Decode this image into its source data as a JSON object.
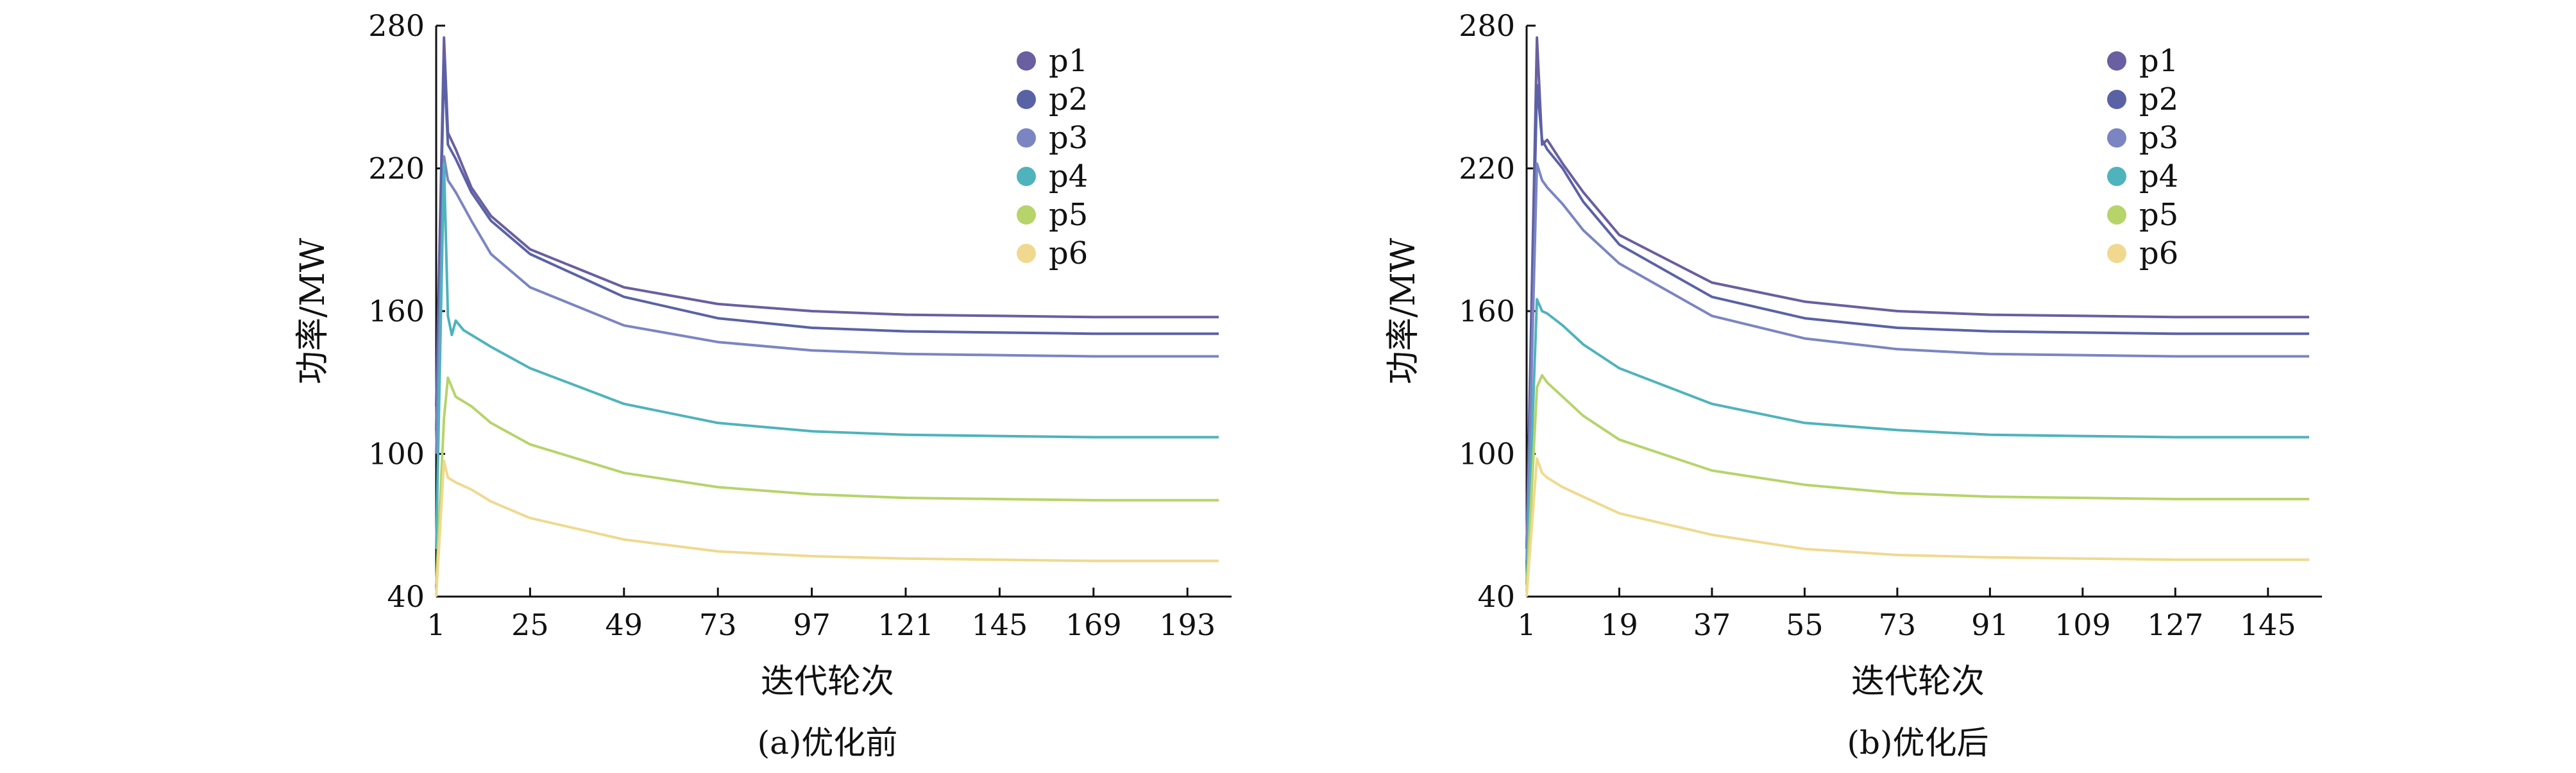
{
  "chart_data": [
    {
      "type": "line",
      "caption": "(a)优化前",
      "xlabel": "迭代轮次",
      "ylabel": "功率/MW",
      "xlim": [
        1,
        201
      ],
      "ylim": [
        40,
        280
      ],
      "xticks": [
        1,
        25,
        49,
        73,
        97,
        121,
        145,
        169,
        193
      ],
      "yticks": [
        40,
        100,
        160,
        220,
        280
      ],
      "legend_position": "top-right",
      "series": [
        {
          "name": "p1",
          "color": "#6a5fa0",
          "points": [
            [
              1,
              120
            ],
            [
              3,
              275
            ],
            [
              4,
              235
            ],
            [
              6,
              228
            ],
            [
              10,
              212
            ],
            [
              15,
              200
            ],
            [
              25,
              186
            ],
            [
              49,
              170
            ],
            [
              73,
              163
            ],
            [
              97,
              160
            ],
            [
              121,
              158.5
            ],
            [
              145,
              158
            ],
            [
              169,
              157.5
            ],
            [
              201,
              157.5
            ]
          ]
        },
        {
          "name": "p2",
          "color": "#5a62a6",
          "points": [
            [
              1,
              110
            ],
            [
              3,
              265
            ],
            [
              4,
              230
            ],
            [
              6,
              224
            ],
            [
              10,
              210
            ],
            [
              15,
              198
            ],
            [
              25,
              184
            ],
            [
              49,
              166
            ],
            [
              73,
              157
            ],
            [
              97,
              153
            ],
            [
              121,
              151.5
            ],
            [
              145,
              151
            ],
            [
              169,
              150.5
            ],
            [
              201,
              150.5
            ]
          ]
        },
        {
          "name": "p3",
          "color": "#7b85c2",
          "points": [
            [
              1,
              100
            ],
            [
              3,
              225
            ],
            [
              4,
              215
            ],
            [
              6,
              210
            ],
            [
              10,
              198
            ],
            [
              15,
              184
            ],
            [
              25,
              170
            ],
            [
              49,
              154
            ],
            [
              73,
              147
            ],
            [
              97,
              143.5
            ],
            [
              121,
              142
            ],
            [
              145,
              141.5
            ],
            [
              169,
              141
            ],
            [
              201,
              141
            ]
          ]
        },
        {
          "name": "p4",
          "color": "#4fb3bd",
          "points": [
            [
              1,
              60
            ],
            [
              3,
              222
            ],
            [
              4,
              158
            ],
            [
              5,
              150
            ],
            [
              6,
              156
            ],
            [
              8,
              152
            ],
            [
              15,
              145
            ],
            [
              25,
              136
            ],
            [
              49,
              121
            ],
            [
              73,
              113
            ],
            [
              97,
              109.5
            ],
            [
              121,
              108
            ],
            [
              145,
              107.5
            ],
            [
              169,
              107
            ],
            [
              201,
              107
            ]
          ]
        },
        {
          "name": "p5",
          "color": "#b6d46a",
          "points": [
            [
              1,
              45
            ],
            [
              3,
              115
            ],
            [
              4,
              132
            ],
            [
              6,
              124
            ],
            [
              10,
              120
            ],
            [
              15,
              113
            ],
            [
              25,
              104
            ],
            [
              49,
              92
            ],
            [
              73,
              86
            ],
            [
              97,
              83
            ],
            [
              121,
              81.5
            ],
            [
              145,
              81
            ],
            [
              169,
              80.5
            ],
            [
              201,
              80.5
            ]
          ]
        },
        {
          "name": "p6",
          "color": "#f0d98f",
          "points": [
            [
              1,
              40
            ],
            [
              3,
              97
            ],
            [
              4,
              90
            ],
            [
              6,
              88
            ],
            [
              10,
              85
            ],
            [
              15,
              80
            ],
            [
              25,
              73
            ],
            [
              49,
              64
            ],
            [
              73,
              59
            ],
            [
              97,
              57
            ],
            [
              121,
              56
            ],
            [
              145,
              55.5
            ],
            [
              169,
              55
            ],
            [
              201,
              55
            ]
          ]
        }
      ]
    },
    {
      "type": "line",
      "caption": "(b)优化后",
      "xlabel": "迭代轮次",
      "ylabel": "功率/MW",
      "xlim": [
        1,
        153
      ],
      "ylim": [
        40,
        280
      ],
      "xticks": [
        1,
        19,
        37,
        55,
        73,
        91,
        109,
        127,
        145
      ],
      "yticks": [
        40,
        100,
        160,
        220,
        280
      ],
      "legend_position": "top-right",
      "series": [
        {
          "name": "p1",
          "color": "#6a5fa0",
          "points": [
            [
              1,
              60
            ],
            [
              3,
              275
            ],
            [
              4,
              230
            ],
            [
              5,
              232
            ],
            [
              8,
              222
            ],
            [
              12,
              210
            ],
            [
              19,
              192
            ],
            [
              37,
              172
            ],
            [
              55,
              164
            ],
            [
              73,
              160
            ],
            [
              91,
              158.5
            ],
            [
              109,
              158
            ],
            [
              127,
              157.5
            ],
            [
              153,
              157.5
            ]
          ]
        },
        {
          "name": "p2",
          "color": "#5a62a6",
          "points": [
            [
              1,
              60
            ],
            [
              3,
              255
            ],
            [
              4,
              232
            ],
            [
              5,
              228
            ],
            [
              8,
              220
            ],
            [
              12,
              206
            ],
            [
              19,
              188
            ],
            [
              37,
              166
            ],
            [
              55,
              157
            ],
            [
              73,
              153
            ],
            [
              91,
              151.5
            ],
            [
              109,
              151
            ],
            [
              127,
              150.5
            ],
            [
              153,
              150.5
            ]
          ]
        },
        {
          "name": "p3",
          "color": "#7b85c2",
          "points": [
            [
              1,
              55
            ],
            [
              3,
              222
            ],
            [
              4,
              215
            ],
            [
              5,
              212
            ],
            [
              8,
              205
            ],
            [
              12,
              194
            ],
            [
              19,
              180
            ],
            [
              37,
              158
            ],
            [
              55,
              148.5
            ],
            [
              73,
              144
            ],
            [
              91,
              142
            ],
            [
              109,
              141.5
            ],
            [
              127,
              141
            ],
            [
              153,
              141
            ]
          ]
        },
        {
          "name": "p4",
          "color": "#4fb3bd",
          "points": [
            [
              1,
              45
            ],
            [
              3,
              165
            ],
            [
              4,
              160
            ],
            [
              5,
              159
            ],
            [
              8,
              154
            ],
            [
              12,
              146
            ],
            [
              19,
              136
            ],
            [
              37,
              121
            ],
            [
              55,
              113
            ],
            [
              73,
              110
            ],
            [
              91,
              108
            ],
            [
              109,
              107.5
            ],
            [
              127,
              107
            ],
            [
              153,
              107
            ]
          ]
        },
        {
          "name": "p5",
          "color": "#b6d46a",
          "points": [
            [
              1,
              42
            ],
            [
              3,
              128
            ],
            [
              4,
              133
            ],
            [
              5,
              130
            ],
            [
              8,
              124
            ],
            [
              12,
              116
            ],
            [
              19,
              106
            ],
            [
              37,
              93
            ],
            [
              55,
              87
            ],
            [
              73,
              83.5
            ],
            [
              91,
              82
            ],
            [
              109,
              81.5
            ],
            [
              127,
              81
            ],
            [
              153,
              81
            ]
          ]
        },
        {
          "name": "p6",
          "color": "#f0d98f",
          "points": [
            [
              1,
              40
            ],
            [
              3,
              98
            ],
            [
              4,
              92
            ],
            [
              5,
              90
            ],
            [
              8,
              86
            ],
            [
              12,
              82
            ],
            [
              19,
              75
            ],
            [
              37,
              66
            ],
            [
              55,
              60
            ],
            [
              73,
              57.5
            ],
            [
              91,
              56.5
            ],
            [
              109,
              56
            ],
            [
              127,
              55.5
            ],
            [
              153,
              55.5
            ]
          ]
        }
      ]
    }
  ]
}
